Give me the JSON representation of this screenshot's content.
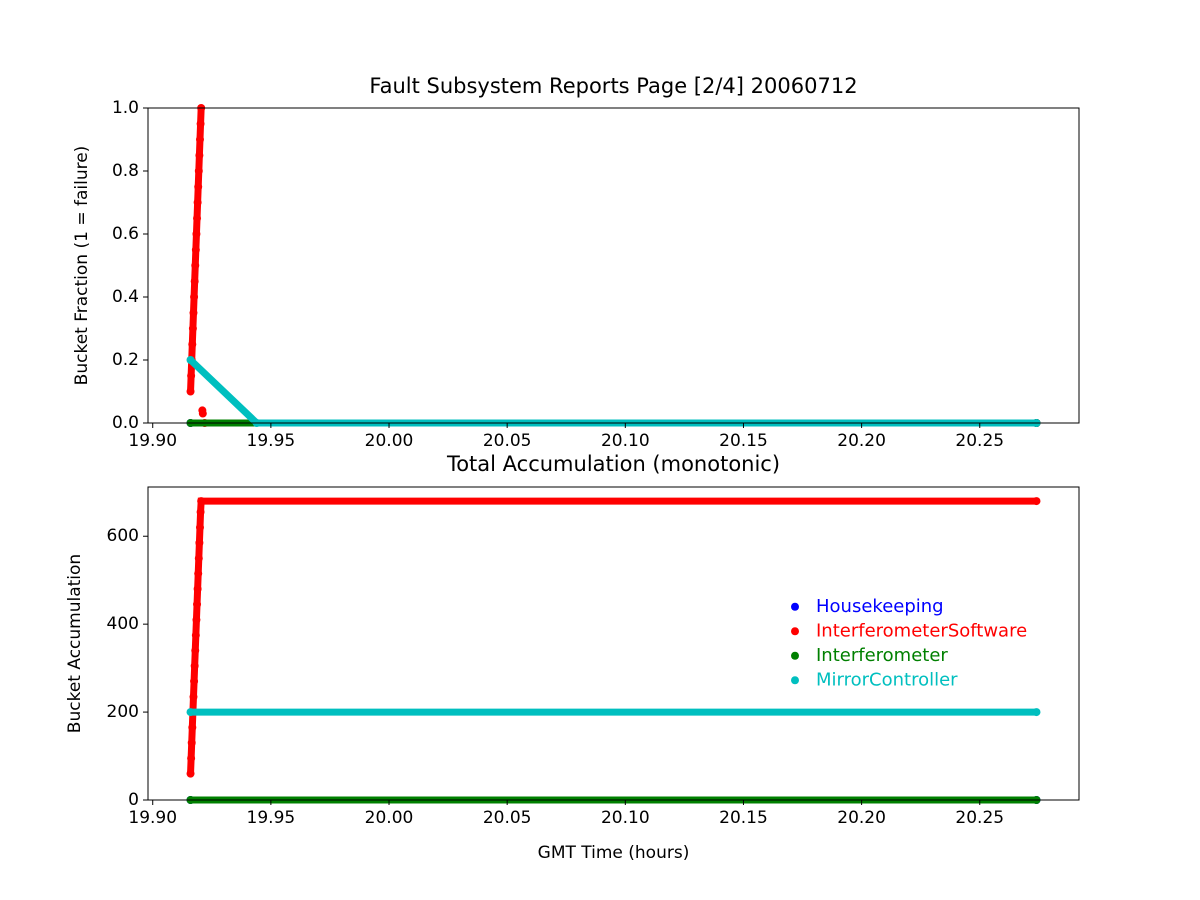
{
  "chart_data": [
    {
      "type": "line",
      "title": "Fault Subsystem Reports Page [2/4] 20060712",
      "y_label": "Bucket Fraction (1 = failure)",
      "xlim": [
        19.898,
        20.292
      ],
      "xticks": [
        {
          "value": 19.9,
          "label": "19.90"
        },
        {
          "value": 19.95,
          "label": "19.95"
        },
        {
          "value": 20.0,
          "label": "20.00"
        },
        {
          "value": 20.05,
          "label": "20.05"
        },
        {
          "value": 20.1,
          "label": "20.10"
        },
        {
          "value": 20.15,
          "label": "20.15"
        },
        {
          "value": 20.2,
          "label": "20.20"
        },
        {
          "value": 20.25,
          "label": "20.25"
        }
      ],
      "ylim": [
        0,
        1
      ],
      "yticks": [
        {
          "value": 0,
          "label": "0.0"
        },
        0.2,
        0.4,
        0.6,
        0.8,
        {
          "value": 1,
          "label": "1.0"
        }
      ],
      "series": [
        {
          "name": "Housekeeping",
          "color": "#0000ff",
          "x": [
            19.916,
            20.274
          ],
          "values": [
            0,
            0
          ]
        },
        {
          "name": "InterferometerSoftware",
          "color": "#ff0000",
          "x": [
            19.916,
            19.91625,
            19.9165,
            19.91675,
            19.917,
            19.91725,
            19.9175,
            19.91775,
            19.918,
            19.91825,
            19.9185,
            19.91875,
            19.919,
            19.91925,
            19.9195,
            19.91975,
            19.92,
            19.92025,
            19.9205,
            19.9208,
            19.921,
            19.9212,
            19.9215,
            19.922,
            20.274
          ],
          "values": [
            0.1,
            0.15,
            0.2,
            0.25,
            0.3,
            0.35,
            0.4,
            0.45,
            0.5,
            0.55,
            0.6,
            0.65,
            0.7,
            0.75,
            0.8,
            0.85,
            0.9,
            0.95,
            1.0,
            null,
            0.04,
            0.03,
            null,
            0,
            0
          ]
        },
        {
          "name": "Interferometer",
          "color": "#008000",
          "x": [
            19.916,
            20.274
          ],
          "values": [
            0,
            0
          ]
        },
        {
          "name": "MirrorController",
          "color": "#00bfbf",
          "x": [
            19.916,
            19.944,
            20.274
          ],
          "values": [
            0.2,
            0,
            0
          ]
        }
      ]
    },
    {
      "type": "line",
      "title": "Total Accumulation (monotonic)",
      "x_label": "GMT Time (hours)",
      "y_label": "Bucket Accumulation",
      "xlim": [
        19.898,
        20.292
      ],
      "xticks": [
        {
          "value": 19.9,
          "label": "19.90"
        },
        {
          "value": 19.95,
          "label": "19.95"
        },
        {
          "value": 20.0,
          "label": "20.00"
        },
        {
          "value": 20.05,
          "label": "20.05"
        },
        {
          "value": 20.1,
          "label": "20.10"
        },
        {
          "value": 20.15,
          "label": "20.15"
        },
        {
          "value": 20.2,
          "label": "20.20"
        },
        {
          "value": 20.25,
          "label": "20.25"
        }
      ],
      "ylim": [
        0,
        712
      ],
      "yticks": [
        0,
        200,
        400,
        600
      ],
      "legend": "center right",
      "series": [
        {
          "name": "Housekeeping",
          "color": "#0000ff",
          "x": [
            19.916,
            20.274
          ],
          "values": [
            0,
            0
          ]
        },
        {
          "name": "InterferometerSoftware",
          "color": "#ff0000",
          "x": [
            19.916,
            19.91625,
            19.9165,
            19.91675,
            19.917,
            19.91725,
            19.9175,
            19.91775,
            19.918,
            19.91825,
            19.9185,
            19.91875,
            19.919,
            19.91925,
            19.9195,
            19.91975,
            19.92,
            19.92025,
            19.9205,
            20.274
          ],
          "values": [
            60,
            95,
            130,
            165,
            200,
            235,
            270,
            305,
            340,
            375,
            410,
            445,
            480,
            515,
            550,
            585,
            620,
            655,
            680,
            680
          ]
        },
        {
          "name": "Interferometer",
          "color": "#008000",
          "x": [
            19.916,
            20.274
          ],
          "values": [
            0,
            0
          ]
        },
        {
          "name": "MirrorController",
          "color": "#00bfbf",
          "x": [
            19.916,
            20.274
          ],
          "values": [
            200,
            200
          ]
        }
      ]
    }
  ]
}
